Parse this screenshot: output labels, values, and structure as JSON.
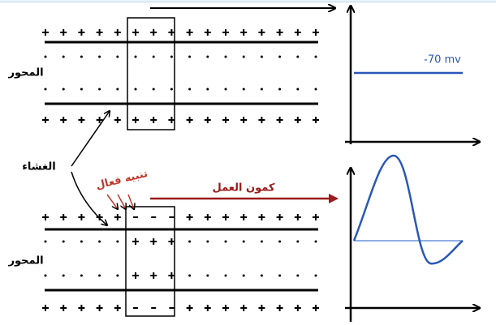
{
  "labels": {
    "axon_top": "المحور",
    "axon_bottom": "المحور",
    "membrane": "الغشاء",
    "stimulus": "تنبيه فعال",
    "action_potential": "كمون العمل",
    "resting_potential": "-70 mv"
  }
}
